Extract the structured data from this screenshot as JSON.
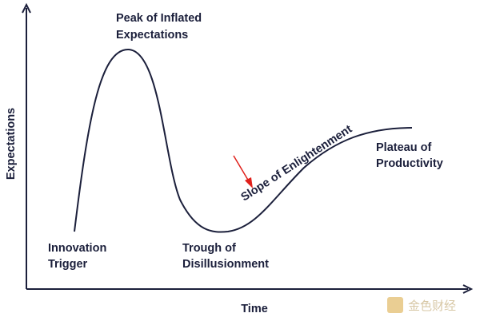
{
  "axes": {
    "y_label": "Expectations",
    "x_label": "Time"
  },
  "phases": [
    {
      "lines": [
        "Innovation",
        "Trigger"
      ]
    },
    {
      "lines": [
        "Peak of Inflated",
        "Expectations"
      ]
    },
    {
      "lines": [
        "Trough of",
        "Disillusionment"
      ]
    },
    {
      "lines": [
        "Plateau of",
        "Productivity"
      ]
    }
  ],
  "curve_label": "Slope of Enlightenment",
  "watermark": "金色财经"
}
